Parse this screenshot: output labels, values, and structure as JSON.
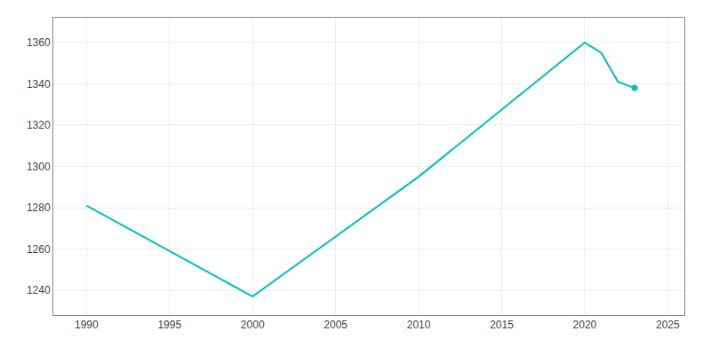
{
  "chart_data": {
    "type": "line",
    "x": [
      1990,
      2000,
      2010,
      2020,
      2021,
      2022,
      2023
    ],
    "values": [
      1281,
      1237,
      1295,
      1360,
      1355,
      1341,
      1338
    ],
    "color": "#00BFBF",
    "marker": "circle",
    "xlim": [
      1988,
      2026
    ],
    "xticks": [
      1990,
      1995,
      2000,
      2005,
      2010,
      2015,
      2020,
      2025
    ],
    "ylim": [
      1228,
      1372
    ],
    "yticks": [
      1240,
      1260,
      1280,
      1300,
      1320,
      1340,
      1360
    ],
    "grid": true
  }
}
